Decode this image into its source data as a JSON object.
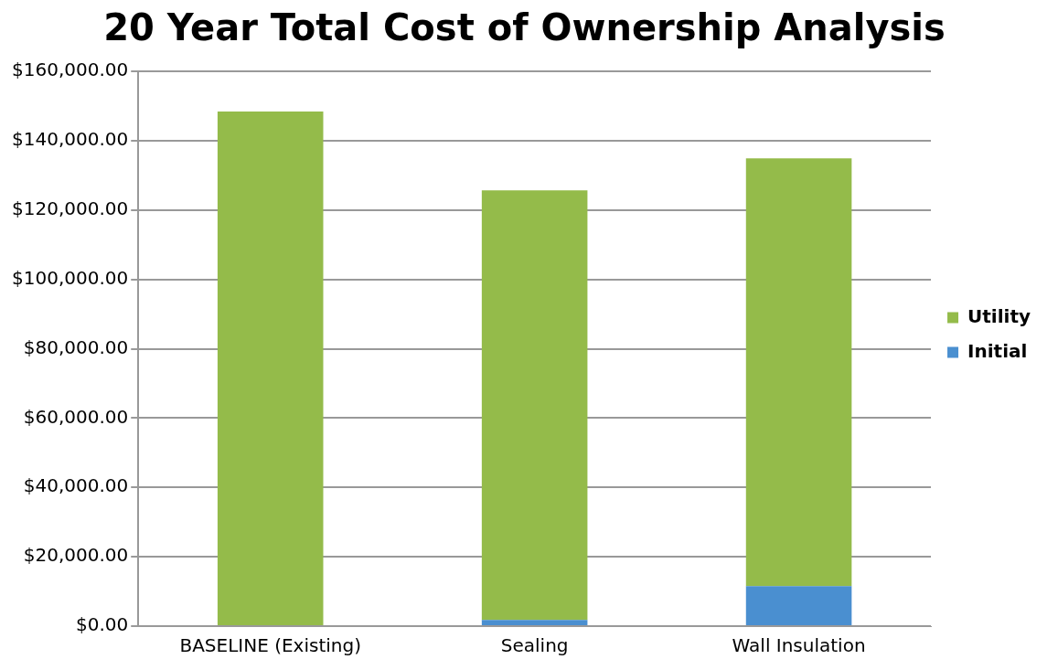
{
  "chart_data": {
    "type": "bar",
    "title": "20 Year Total Cost of Ownership Analysis",
    "categories": [
      "BASELINE (Existing)",
      "Sealing",
      "Wall Insulation"
    ],
    "stacked": true,
    "series": [
      {
        "name": "Initial",
        "color": "#4a8fd0",
        "values": [
          0,
          1800,
          11500
        ]
      },
      {
        "name": "Utility",
        "color": "#94bb4a",
        "values": [
          148400,
          123900,
          123400
        ]
      }
    ],
    "ylim": [
      0,
      160000
    ],
    "yticks": [
      {
        "value": 0,
        "label": "$0.00"
      },
      {
        "value": 20000,
        "label": "$20,000.00"
      },
      {
        "value": 40000,
        "label": "$40,000.00"
      },
      {
        "value": 60000,
        "label": "$60,000.00"
      },
      {
        "value": 80000,
        "label": "$80,000.00"
      },
      {
        "value": 100000,
        "label": "$100,000.00"
      },
      {
        "value": 120000,
        "label": "$120,000.00"
      },
      {
        "value": 140000,
        "label": "$140,000.00"
      },
      {
        "value": 160000,
        "label": "$160,000.00"
      }
    ],
    "grid": "y",
    "legend": "right"
  }
}
